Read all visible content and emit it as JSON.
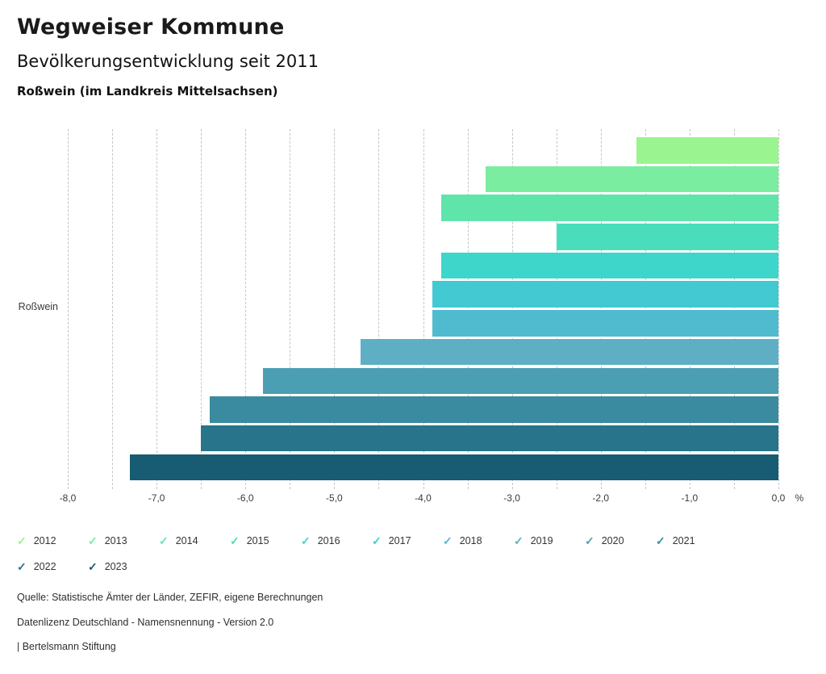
{
  "header": {
    "title": "Wegweiser Kommune",
    "subtitle": "Bevölkerungsentwicklung seit 2011",
    "region_line": "Roßwein (im Landkreis Mittelsachsen)"
  },
  "chart_data": {
    "type": "bar",
    "orientation": "horizontal",
    "title": "Bevölkerungsentwicklung seit 2011",
    "group_label": "Roßwein",
    "unit": "%",
    "categories": [
      "2012",
      "2013",
      "2014",
      "2015",
      "2016",
      "2017",
      "2018",
      "2019",
      "2020",
      "2021",
      "2022",
      "2023"
    ],
    "values": [
      -1.6,
      -3.3,
      -3.8,
      -2.5,
      -3.8,
      -3.9,
      -3.9,
      -4.7,
      -5.8,
      -6.4,
      -6.5,
      -7.3
    ],
    "colors": [
      "#9AF48F",
      "#7BEDA0",
      "#5FE5A9",
      "#49DDBB",
      "#3ED5CB",
      "#42C9D2",
      "#50BBCE",
      "#5EAFC4",
      "#4C9EB2",
      "#3A8B9F",
      "#28748A",
      "#175C72"
    ],
    "xlim": [
      -8,
      0
    ],
    "grid_step": 0.5,
    "grid": true,
    "xtick_values": [
      -8,
      -7,
      -6,
      -5,
      -4,
      -3,
      -2,
      -1,
      0
    ],
    "xtick_labels": [
      "-8,0",
      "-7,0",
      "-6,0",
      "-5,0",
      "-4,0",
      "-3,0",
      "-2,0",
      "-1,0",
      "0,0"
    ],
    "legend_position": "bottom"
  },
  "legend": {
    "check_glyph": "✓"
  },
  "footer": {
    "source": "Quelle: Statistische Ämter der Länder, ZEFIR, eigene Berechnungen",
    "license": "Datenlizenz Deutschland - Namensnennung - Version 2.0",
    "attribution": "| Bertelsmann Stiftung"
  }
}
